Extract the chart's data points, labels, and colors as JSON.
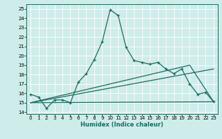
{
  "xlabel": "Humidex (Indice chaleur)",
  "ylabel": "",
  "background_color": "#ceecea",
  "grid_color": "#ffffff",
  "line_color": "#1a6b5e",
  "xlim": [
    -0.5,
    23.5
  ],
  "ylim": [
    13.8,
    25.5
  ],
  "yticks": [
    14,
    15,
    16,
    17,
    18,
    19,
    20,
    21,
    22,
    23,
    24,
    25
  ],
  "xticks": [
    0,
    1,
    2,
    3,
    4,
    5,
    6,
    7,
    8,
    9,
    10,
    11,
    12,
    13,
    14,
    15,
    16,
    17,
    18,
    19,
    20,
    21,
    22,
    23
  ],
  "curve1_x": [
    0,
    1,
    2,
    3,
    4,
    5,
    6,
    7,
    8,
    9,
    10,
    11,
    12,
    13,
    14,
    15,
    16,
    17,
    18,
    19,
    20,
    21,
    22,
    23
  ],
  "curve1_y": [
    15.9,
    15.6,
    14.4,
    15.3,
    15.3,
    15.0,
    17.2,
    18.1,
    19.6,
    21.5,
    24.9,
    24.3,
    20.9,
    19.5,
    19.3,
    19.1,
    19.3,
    18.6,
    18.1,
    18.6,
    17.0,
    15.9,
    16.1,
    15.1
  ],
  "curve2_x": [
    0,
    23
  ],
  "curve2_y": [
    15.0,
    15.1
  ],
  "curve3_x": [
    0,
    23
  ],
  "curve3_y": [
    15.0,
    18.6
  ],
  "curve4_x": [
    0,
    20,
    23
  ],
  "curve4_y": [
    15.0,
    19.0,
    15.1
  ]
}
